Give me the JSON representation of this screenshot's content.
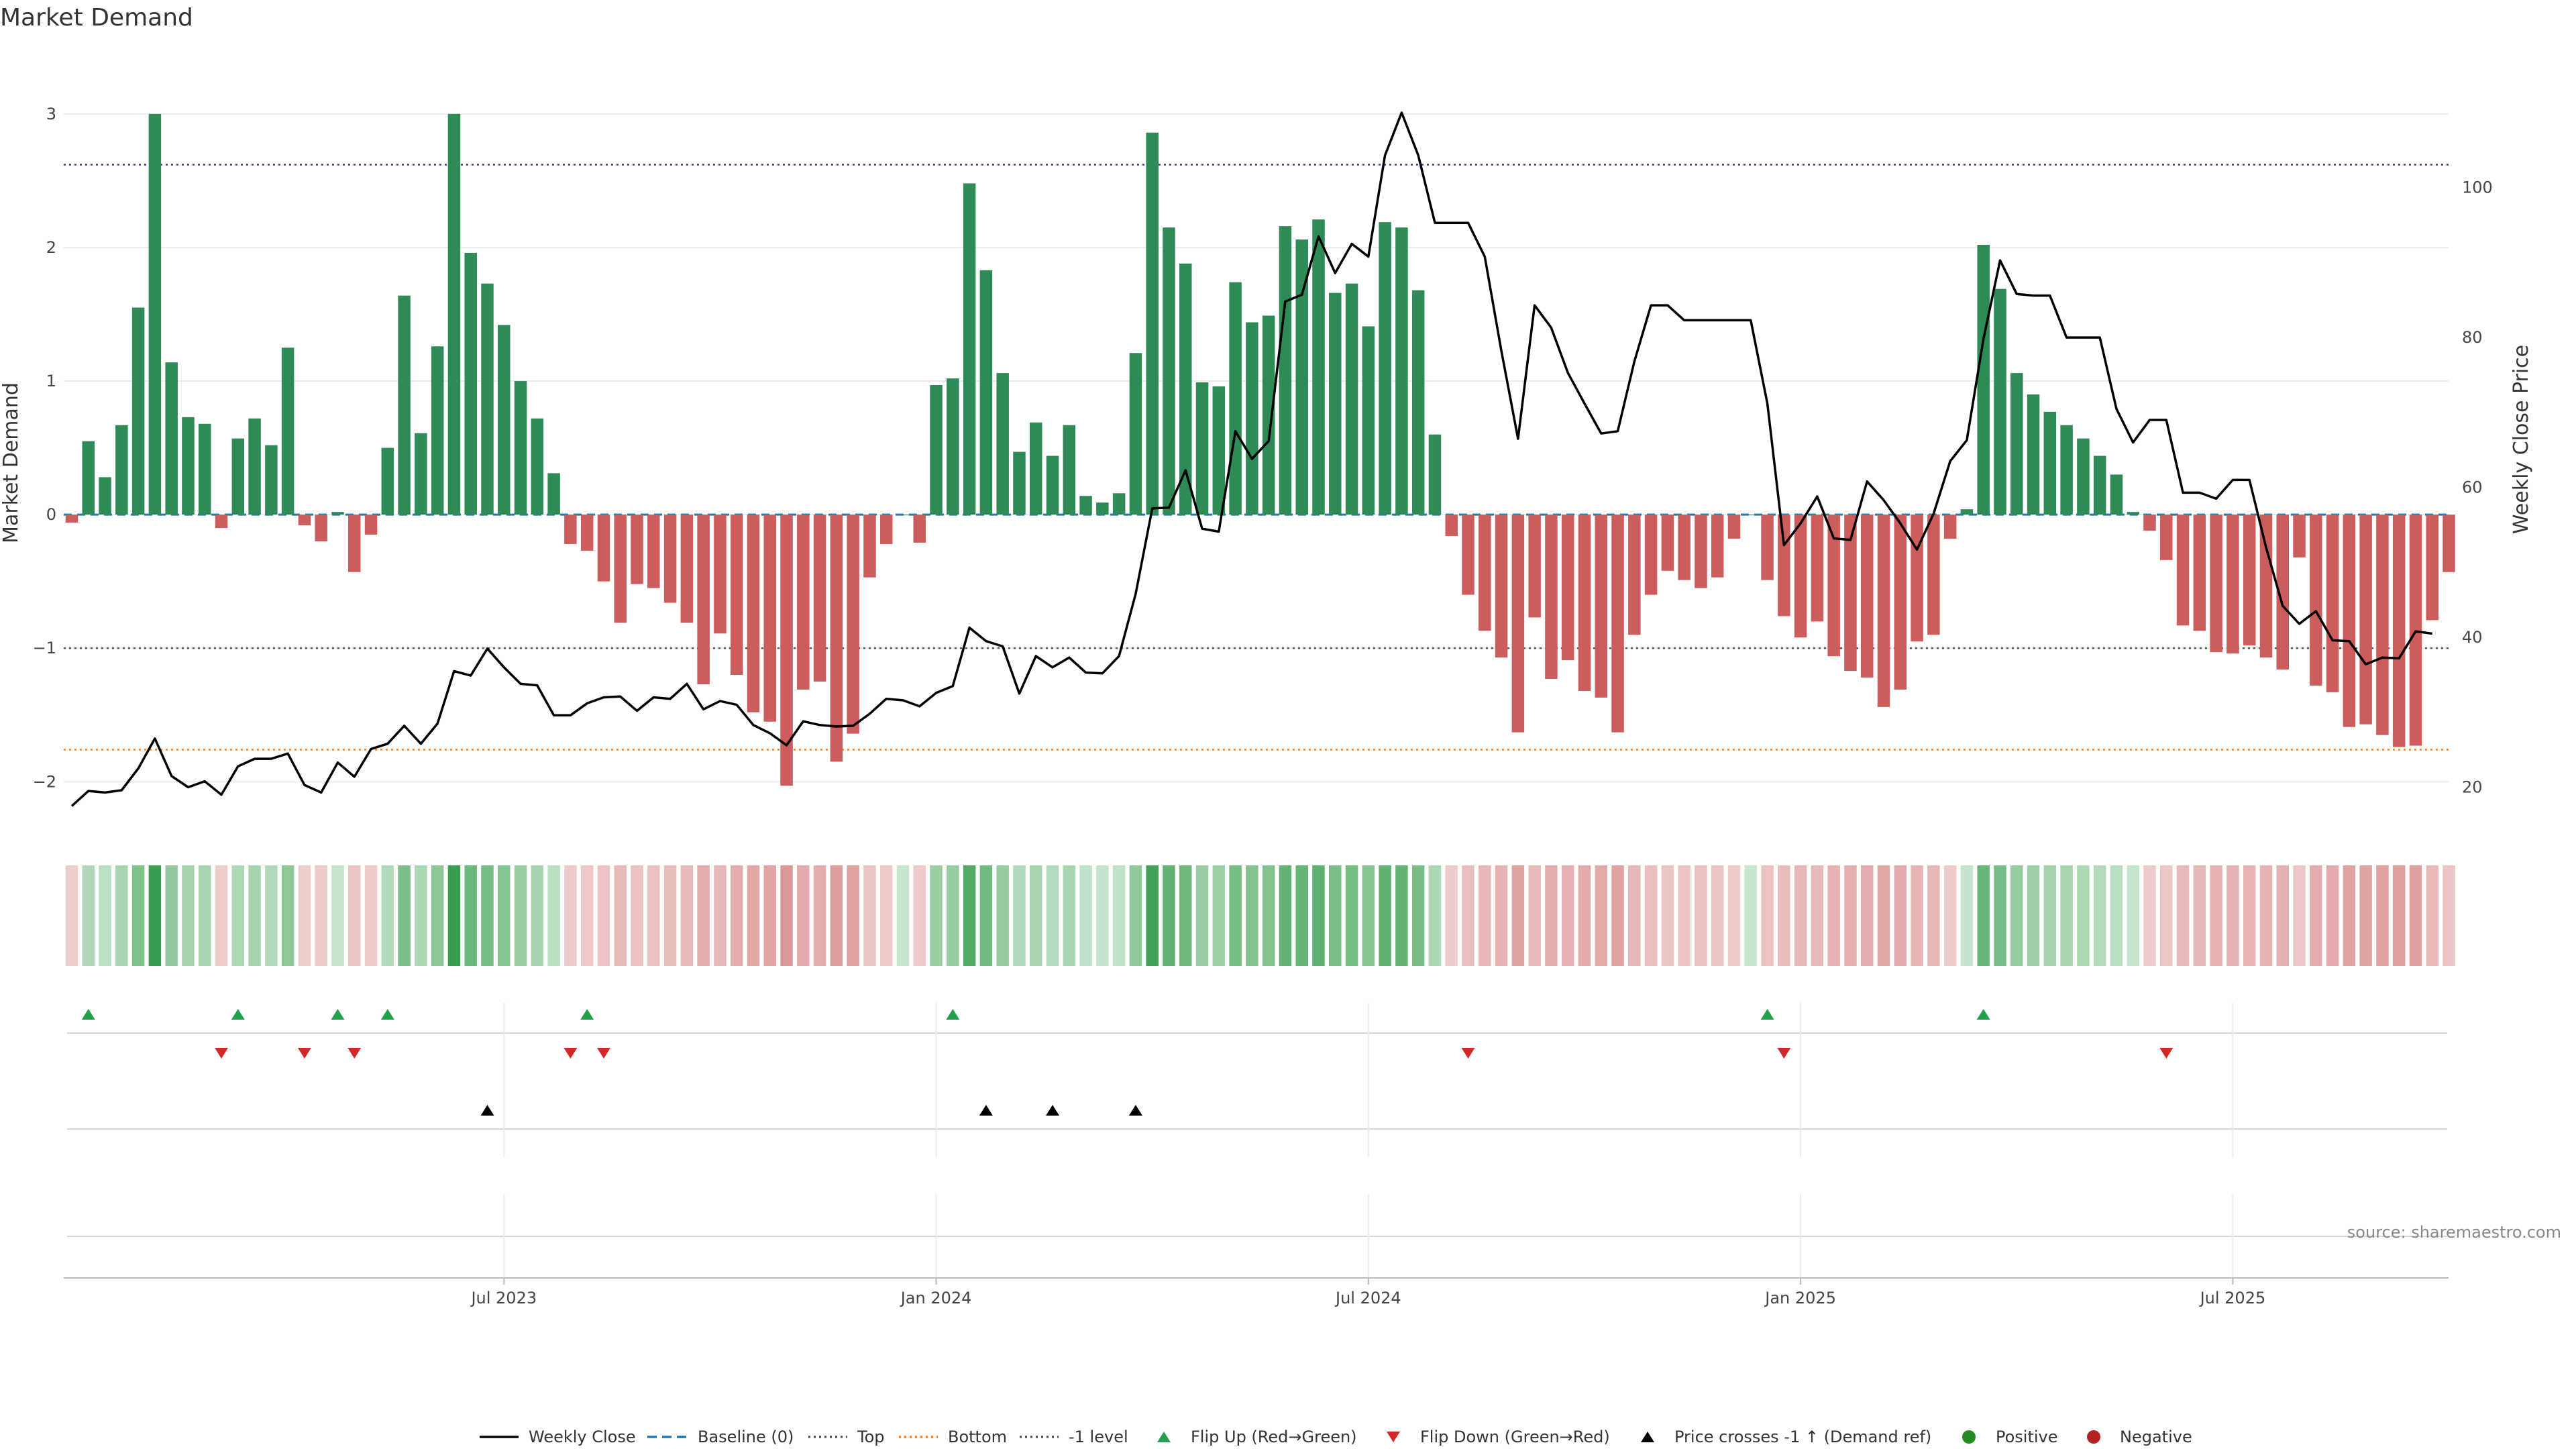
{
  "chart_data": {
    "type": "bar",
    "title": "Market Demand",
    "ylabel": "Market Demand",
    "y2label": "Weekly Close Price",
    "ylim": [
      -2.35,
      3.15
    ],
    "y2lim": [
      14.5,
      112.5
    ],
    "yticks": [
      -2,
      -1,
      0,
      1,
      2,
      3
    ],
    "y2ticks": [
      20,
      40,
      60,
      80,
      100
    ],
    "x_start": "2023-01-04",
    "x_end": "2025-10-08",
    "xticks": [
      {
        "label": "Jul 2023",
        "week": 26
      },
      {
        "label": "Jan 2024",
        "week": 52
      },
      {
        "label": "Jul 2024",
        "week": 78
      },
      {
        "label": "Jan 2025",
        "week": 104
      },
      {
        "label": "Jul 2025",
        "week": 130
      }
    ],
    "reference_lines": {
      "top": 2.62,
      "minus_one": -1,
      "bottom": -1.76,
      "baseline": 0
    },
    "series": [
      {
        "name": "Market Demand",
        "values": [
          -0.06,
          0.55,
          0.28,
          0.67,
          1.55,
          3.0,
          1.14,
          0.73,
          0.68,
          -0.1,
          0.57,
          0.72,
          0.52,
          1.25,
          -0.08,
          -0.2,
          0.02,
          -0.43,
          -0.15,
          0.5,
          1.64,
          0.61,
          1.26,
          3.0,
          1.96,
          1.73,
          1.42,
          1.0,
          0.72,
          0.31,
          -0.22,
          -0.27,
          -0.5,
          -0.81,
          -0.52,
          -0.55,
          -0.66,
          -0.81,
          -1.27,
          -0.89,
          -1.2,
          -1.48,
          -1.55,
          -2.03,
          -1.31,
          -1.25,
          -1.85,
          -1.64,
          -0.47,
          -0.22,
          0.0,
          -0.21,
          0.97,
          1.02,
          2.48,
          1.83,
          1.06,
          0.47,
          0.69,
          0.44,
          0.67,
          0.14,
          0.09,
          0.16,
          1.21,
          2.86,
          2.15,
          1.88,
          0.99,
          0.96,
          1.74,
          1.44,
          1.49,
          2.16,
          2.06,
          2.21,
          1.66,
          1.73,
          1.41,
          2.19,
          2.15,
          1.68,
          0.6,
          -0.16,
          -0.6,
          -0.87,
          -1.07,
          -1.63,
          -0.77,
          -1.23,
          -1.09,
          -1.32,
          -1.37,
          -1.63,
          -0.9,
          -0.6,
          -0.42,
          -0.49,
          -0.55,
          -0.47,
          -0.18,
          0.0,
          -0.49,
          -0.76,
          -0.92,
          -0.8,
          -1.06,
          -1.17,
          -1.22,
          -1.44,
          -1.31,
          -0.95,
          -0.9,
          -0.18,
          0.04,
          2.02,
          1.69,
          1.06,
          0.9,
          0.77,
          0.67,
          0.57,
          0.44,
          0.3,
          0.02,
          -0.12,
          -0.34,
          -0.83,
          -0.87,
          -1.03,
          -1.04,
          -0.98,
          -1.07,
          -1.16,
          -0.32,
          -1.28,
          -1.33,
          -1.59,
          -1.57,
          -1.65,
          -1.74,
          -1.73,
          -0.79,
          -0.43
        ]
      },
      {
        "name": "Weekly Close",
        "values": [
          17.5,
          19.5,
          19.3,
          19.6,
          22.5,
          26.5,
          21.5,
          20.0,
          20.8,
          19.0,
          22.8,
          23.8,
          23.8,
          24.5,
          20.3,
          19.3,
          23.3,
          21.4,
          25.1,
          25.8,
          28.2,
          25.8,
          28.5,
          35.5,
          34.9,
          38.5,
          36.0,
          33.8,
          33.6,
          29.6,
          29.6,
          31.2,
          32.0,
          32.1,
          30.2,
          32.0,
          31.8,
          33.8,
          30.4,
          31.5,
          31.0,
          28.3,
          27.2,
          25.6,
          28.8,
          28.3,
          28.1,
          28.2,
          29.8,
          31.8,
          31.6,
          30.8,
          32.6,
          33.5,
          41.3,
          39.5,
          38.8,
          32.5,
          37.5,
          36.0,
          37.3,
          35.3,
          35.2,
          37.5,
          45.8,
          57.2,
          57.3,
          62.3,
          54.5,
          54.1,
          67.5,
          63.8,
          66.2,
          84.8,
          85.7,
          93.5,
          88.6,
          92.5,
          90.8,
          104.3,
          110.0,
          104.3,
          95.3,
          95.3,
          95.3,
          90.8,
          78.2,
          66.5,
          84.3,
          81.3,
          75.3,
          71.2,
          67.2,
          67.5,
          76.8,
          84.3,
          84.3,
          82.3,
          82.3,
          82.3,
          82.3,
          82.3,
          71.2,
          52.3,
          55.2,
          58.8,
          53.2,
          53.0,
          60.8,
          58.3,
          55.2,
          51.7,
          56.5,
          63.5,
          66.3,
          79.8,
          90.3,
          85.8,
          85.6,
          85.6,
          80.0,
          80.0,
          80.0,
          70.5,
          66.0,
          69.0,
          69.0,
          59.3,
          59.3,
          58.5,
          61.0,
          61.0,
          52.0,
          44.2,
          41.8,
          43.5,
          39.6,
          39.5,
          36.4,
          37.3,
          37.2,
          40.8,
          40.5
        ]
      }
    ],
    "flip_up_weeks": [
      1,
      10,
      16,
      19,
      31,
      53,
      102,
      115
    ],
    "flip_down_weeks": [
      9,
      14,
      17,
      30,
      32,
      84,
      103,
      126
    ],
    "price_cross_weeks": [
      25,
      55,
      59,
      64
    ],
    "legend": [
      "Weekly Close",
      "Baseline (0)",
      "Top",
      "Bottom",
      "-1 level",
      "Flip Up (Red→Green)",
      "Flip Down (Green→Red)",
      "Price crosses -1 ↑ (Demand ref)",
      "Positive",
      "Negative"
    ],
    "source": "source: sharemaestro.com"
  },
  "colors": {
    "positive_bar": "#2e8b57",
    "negative_bar": "#cd5c5c",
    "price_line": "#000000",
    "baseline": "#1f77b4",
    "top_line": "#3b3b8f",
    "bottom_line": "#ff7f0e",
    "minus_one_line": "#555555",
    "flip_up": "#22a04b",
    "flip_down": "#d62728",
    "cross_marker": "#000000",
    "positive_dot": "#228b22",
    "negative_dot": "#b22222"
  }
}
